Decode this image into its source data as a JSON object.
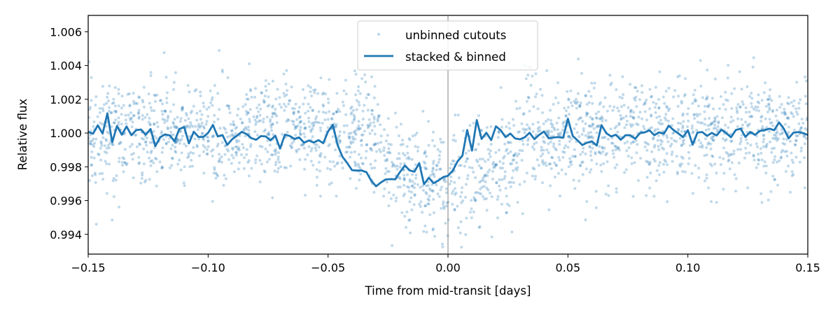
{
  "chart_data": {
    "type": "scatter",
    "title": "",
    "xlabel": "Time from mid-transit [days]",
    "ylabel": "Relative flux",
    "xlim": [
      -0.15,
      0.15
    ],
    "ylim": [
      0.99283,
      1.00697
    ],
    "x_ticks": [
      -0.15,
      -0.1,
      -0.05,
      0.0,
      0.05,
      0.1,
      0.15
    ],
    "x_tick_labels": [
      "−0.15",
      "−0.10",
      "−0.05",
      "0.00",
      "0.05",
      "0.10",
      "0.15"
    ],
    "y_ticks": [
      0.994,
      0.996,
      0.998,
      1.0,
      1.002,
      1.004,
      1.006
    ],
    "y_tick_labels": [
      "0.994",
      "0.996",
      "0.998",
      "1.000",
      "1.002",
      "1.004",
      "1.006"
    ],
    "vertical_line_x": 0.0,
    "grid": false,
    "legend_position": "upper-center",
    "colors": {
      "scatter": "#1f77b4",
      "line": "#1f77b4",
      "midline": "#808080"
    },
    "series": [
      {
        "name": "unbinned cutouts",
        "kind": "scatter",
        "n_points": 2400,
        "noise_sigma": 0.00155,
        "transit_depth": 0.0028,
        "transit_half_width": 0.032
      },
      {
        "name": "stacked & binned",
        "kind": "line",
        "x": [
          -0.15,
          -0.148,
          -0.146,
          -0.144,
          -0.142,
          -0.14,
          -0.138,
          -0.136,
          -0.134,
          -0.132,
          -0.13,
          -0.128,
          -0.126,
          -0.124,
          -0.122,
          -0.12,
          -0.118,
          -0.116,
          -0.114,
          -0.112,
          -0.11,
          -0.108,
          -0.106,
          -0.104,
          -0.102,
          -0.1,
          -0.098,
          -0.096,
          -0.094,
          -0.092,
          -0.09,
          -0.088,
          -0.086,
          -0.084,
          -0.082,
          -0.08,
          -0.078,
          -0.076,
          -0.074,
          -0.072,
          -0.07,
          -0.068,
          -0.066,
          -0.064,
          -0.062,
          -0.06,
          -0.058,
          -0.056,
          -0.054,
          -0.052,
          -0.05,
          -0.048,
          -0.046,
          -0.044,
          -0.042,
          -0.04,
          -0.038,
          -0.036,
          -0.034,
          -0.032,
          -0.03,
          -0.028,
          -0.026,
          -0.024,
          -0.022,
          -0.02,
          -0.018,
          -0.016,
          -0.014,
          -0.012,
          -0.01,
          -0.008,
          -0.006,
          -0.004,
          -0.002,
          0.0,
          0.002,
          0.004,
          0.006,
          0.008,
          0.01,
          0.012,
          0.014,
          0.016,
          0.018,
          0.02,
          0.022,
          0.024,
          0.026,
          0.028,
          0.03,
          0.032,
          0.034,
          0.036,
          0.038,
          0.04,
          0.042,
          0.044,
          0.046,
          0.048,
          0.05,
          0.052,
          0.054,
          0.056,
          0.058,
          0.06,
          0.062,
          0.064,
          0.066,
          0.068,
          0.07,
          0.072,
          0.074,
          0.076,
          0.078,
          0.08,
          0.082,
          0.084,
          0.086,
          0.088,
          0.09,
          0.092,
          0.094,
          0.096,
          0.098,
          0.1,
          0.102,
          0.104,
          0.106,
          0.108,
          0.11,
          0.112,
          0.114,
          0.116,
          0.118,
          0.12,
          0.122,
          0.124,
          0.126,
          0.128,
          0.13,
          0.132,
          0.134,
          0.136,
          0.138,
          0.14,
          0.142,
          0.144,
          0.146,
          0.148,
          0.15
        ],
        "y": [
          1.00007,
          0.99996,
          1.00046,
          0.99997,
          1.00117,
          0.99945,
          1.00042,
          0.9999,
          1.00039,
          0.99987,
          1.00017,
          1.00021,
          0.9999,
          1.00024,
          0.99923,
          0.99975,
          0.99992,
          0.99986,
          0.99952,
          1.00024,
          1.00035,
          0.99939,
          1.00008,
          0.99977,
          0.99977,
          1.00001,
          1.00048,
          0.9998,
          0.99988,
          0.9993,
          0.99963,
          0.99984,
          1.00007,
          0.99994,
          0.9997,
          0.9996,
          0.99982,
          0.9998,
          0.99957,
          0.99984,
          0.99908,
          0.99991,
          0.99983,
          0.99965,
          0.99974,
          0.99943,
          0.99956,
          0.99944,
          0.99958,
          0.9994,
          1.0001,
          1.00049,
          0.99928,
          0.9986,
          0.99822,
          0.9978,
          0.99778,
          0.99778,
          0.99768,
          0.99718,
          0.99685,
          0.99707,
          0.99725,
          0.99727,
          0.99726,
          0.9977,
          0.99808,
          0.99779,
          0.99771,
          0.99822,
          0.99697,
          0.99736,
          0.99703,
          0.99719,
          0.99739,
          0.99747,
          0.99778,
          0.99833,
          0.99866,
          1.00018,
          0.99896,
          1.00077,
          0.99965,
          1.00002,
          0.99958,
          1.0004,
          1.00016,
          0.99976,
          0.99997,
          0.99968,
          0.99963,
          0.99975,
          1.00002,
          0.99964,
          0.99989,
          1.00009,
          0.99969,
          0.99974,
          0.99976,
          0.99972,
          1.00085,
          0.99983,
          0.99957,
          0.99929,
          0.99943,
          0.99951,
          0.99926,
          1.00047,
          0.99999,
          0.9998,
          0.9999,
          0.9996,
          0.99987,
          0.99987,
          0.99966,
          0.99999,
          1.00004,
          1.00016,
          0.99987,
          1.00004,
          0.99996,
          1.00044,
          1.00018,
          0.99998,
          0.99976,
          1.00017,
          0.99931,
          1.00003,
          1.00006,
          0.99983,
          1.00001,
          0.99986,
          1.0002,
          0.99999,
          0.99975,
          1.00018,
          1.00026,
          0.99977,
          1.00007,
          0.99989,
          1.00013,
          1.00017,
          1.00026,
          1.00017,
          1.00063,
          1.00026,
          0.99969,
          1.00002,
          1.00006,
          1.0,
          0.99989
        ]
      }
    ]
  }
}
